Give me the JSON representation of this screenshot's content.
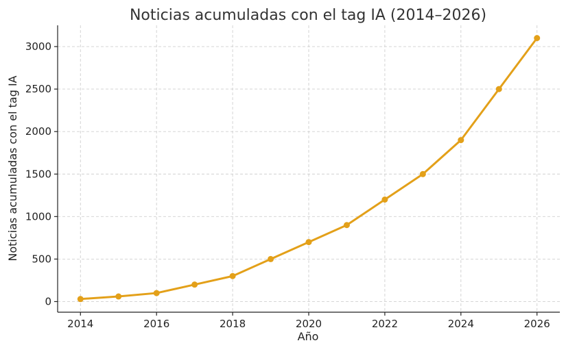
{
  "chart_data": {
    "type": "line",
    "title": "Noticias acumuladas con el tag IA (2014–2026)",
    "xlabel": "Año",
    "ylabel": "Noticias acumuladas con el tag IA",
    "x": [
      2014,
      2015,
      2016,
      2017,
      2018,
      2019,
      2020,
      2021,
      2022,
      2023,
      2024,
      2025,
      2026
    ],
    "series": [
      {
        "values": [
          30,
          60,
          100,
          200,
          300,
          500,
          700,
          900,
          1200,
          1500,
          1900,
          2500,
          3100
        ],
        "color": "#E3A019"
      }
    ],
    "xticks": [
      2014,
      2016,
      2018,
      2020,
      2022,
      2024,
      2026
    ],
    "yticks": [
      0,
      500,
      1000,
      1500,
      2000,
      2500,
      3000
    ],
    "xlim": [
      2013.4,
      2026.6
    ],
    "ylim": [
      -125,
      3250
    ],
    "grid": true,
    "legend": "none",
    "marker": "circle"
  }
}
